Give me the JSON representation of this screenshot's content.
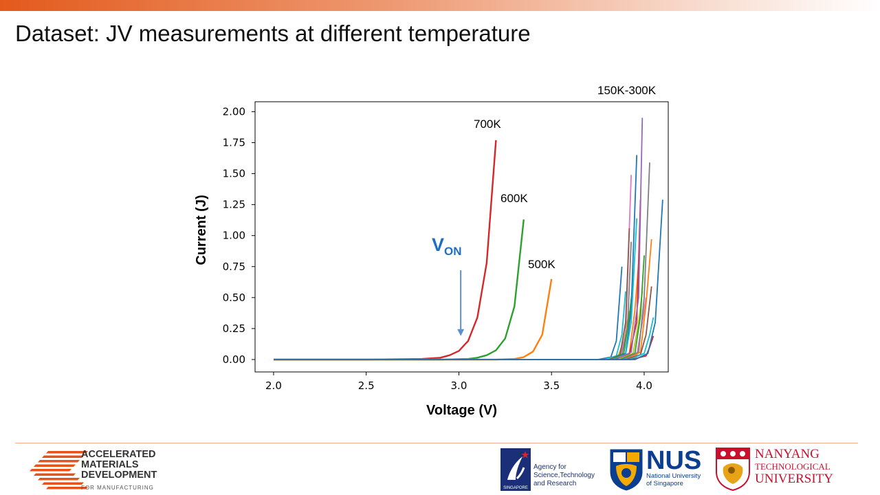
{
  "slide": {
    "title": "Dataset: JV measurements at different temperature"
  },
  "chart_data": {
    "type": "line",
    "title": "",
    "xlabel": "Voltage (V)",
    "ylabel": "Current (J)",
    "xlim": [
      1.9,
      4.13
    ],
    "ylim": [
      -0.1,
      2.08
    ],
    "xticks": [
      "2.0",
      "2.5",
      "3.0",
      "3.5",
      "4.0"
    ],
    "yticks": [
      "0.00",
      "0.25",
      "0.50",
      "0.75",
      "1.00",
      "1.25",
      "1.50",
      "1.75",
      "2.00"
    ],
    "grid": false,
    "series": [
      {
        "name": "700K",
        "color": "#d62728",
        "x": [
          2.0,
          2.5,
          2.8,
          2.9,
          2.95,
          3.0,
          3.05,
          3.1,
          3.15,
          3.2
        ],
        "y": [
          0.0,
          0.0,
          0.005,
          0.015,
          0.035,
          0.07,
          0.15,
          0.34,
          0.78,
          1.77
        ]
      },
      {
        "name": "600K",
        "color": "#2ca02c",
        "x": [
          2.0,
          2.9,
          3.05,
          3.1,
          3.15,
          3.2,
          3.25,
          3.3,
          3.35
        ],
        "y": [
          0.0,
          0.0,
          0.005,
          0.015,
          0.035,
          0.075,
          0.17,
          0.43,
          1.13
        ]
      },
      {
        "name": "500K",
        "color": "#ff7f0e",
        "x": [
          2.0,
          3.2,
          3.3,
          3.35,
          3.4,
          3.45,
          3.5
        ],
        "y": [
          0.0,
          0.0,
          0.005,
          0.02,
          0.065,
          0.2,
          0.65
        ]
      },
      {
        "color": "#1f77b4",
        "x": [
          2.0,
          3.75,
          3.82,
          3.85,
          3.88
        ],
        "y": [
          0.0,
          0.0,
          0.02,
          0.15,
          0.75
        ]
      },
      {
        "color": "#17becf",
        "x": [
          2.0,
          3.78,
          3.85,
          3.88,
          3.9
        ],
        "y": [
          0.0,
          0.0,
          0.03,
          0.2,
          0.55
        ]
      },
      {
        "color": "#bcbd22",
        "x": [
          2.0,
          3.8,
          3.86,
          3.89,
          3.92
        ],
        "y": [
          0.0,
          0.0,
          0.03,
          0.15,
          0.39
        ]
      },
      {
        "color": "#e377c2",
        "x": [
          2.0,
          3.8,
          3.87,
          3.9,
          3.93
        ],
        "y": [
          0.0,
          0.0,
          0.03,
          0.2,
          1.49
        ]
      },
      {
        "color": "#8c564b",
        "x": [
          2.0,
          3.81,
          3.87,
          3.9,
          3.92
        ],
        "y": [
          0.0,
          0.0,
          0.04,
          0.3,
          1.06
        ]
      },
      {
        "color": "#7f7f7f",
        "x": [
          2.0,
          3.82,
          3.88,
          3.91,
          3.93
        ],
        "y": [
          0.0,
          0.0,
          0.04,
          0.25,
          0.95
        ]
      },
      {
        "color": "#2ca02c",
        "x": [
          2.0,
          3.82,
          3.89,
          3.92,
          3.94
        ],
        "y": [
          0.0,
          0.0,
          0.05,
          0.35,
          0.62
        ]
      },
      {
        "color": "#1f77b4",
        "x": [
          2.0,
          3.83,
          3.9,
          3.93,
          3.96
        ],
        "y": [
          0.0,
          0.0,
          0.05,
          0.4,
          1.65
        ]
      },
      {
        "color": "#17becf",
        "x": [
          2.0,
          3.83,
          3.9,
          3.93,
          3.96
        ],
        "y": [
          0.0,
          0.0,
          0.04,
          0.3,
          1.14
        ]
      },
      {
        "color": "#ff7f0e",
        "x": [
          2.0,
          3.84,
          3.92,
          3.95,
          3.97
        ],
        "y": [
          0.0,
          0.0,
          0.05,
          0.4,
          0.78
        ]
      },
      {
        "color": "#d62728",
        "x": [
          2.0,
          3.84,
          3.92,
          3.96,
          3.98
        ],
        "y": [
          0.0,
          0.0,
          0.04,
          0.3,
          1.29
        ]
      },
      {
        "color": "#9467bd",
        "x": [
          2.0,
          3.85,
          3.93,
          3.97,
          3.99
        ],
        "y": [
          0.0,
          0.0,
          0.06,
          0.5,
          1.95
        ]
      },
      {
        "color": "#bcbd22",
        "x": [
          2.0,
          3.86,
          3.94,
          3.97,
          3.99
        ],
        "y": [
          0.0,
          0.0,
          0.05,
          0.3,
          0.55
        ]
      },
      {
        "color": "#2ca02c",
        "x": [
          2.0,
          3.87,
          3.95,
          3.98,
          4.0
        ],
        "y": [
          0.0,
          0.0,
          0.05,
          0.35,
          0.84
        ]
      },
      {
        "color": "#e377c2",
        "x": [
          2.0,
          3.88,
          3.96,
          3.99,
          4.01
        ],
        "y": [
          0.0,
          0.0,
          0.04,
          0.3,
          0.5
        ]
      },
      {
        "color": "#7f7f7f",
        "x": [
          2.0,
          3.88,
          3.97,
          4.0,
          4.03
        ],
        "y": [
          0.0,
          0.0,
          0.06,
          0.5,
          1.59
        ]
      },
      {
        "color": "#ff7f0e",
        "x": [
          2.0,
          3.9,
          3.98,
          4.01,
          4.04
        ],
        "y": [
          0.0,
          0.0,
          0.06,
          0.45,
          0.97
        ]
      },
      {
        "color": "#8c564b",
        "x": [
          2.0,
          3.9,
          3.98,
          4.01,
          4.04
        ],
        "y": [
          0.0,
          0.0,
          0.04,
          0.2,
          0.59
        ]
      },
      {
        "color": "#17becf",
        "x": [
          2.0,
          3.92,
          4.0,
          4.03,
          4.05
        ],
        "y": [
          0.0,
          0.0,
          0.05,
          0.2,
          0.34
        ]
      },
      {
        "color": "#d62728",
        "x": [
          2.0,
          3.93,
          4.01,
          4.03,
          4.05
        ],
        "y": [
          0.0,
          0.0,
          0.03,
          0.1,
          0.19
        ]
      },
      {
        "color": "#1f77b4",
        "x": [
          2.0,
          3.95,
          4.02,
          4.06,
          4.1
        ],
        "y": [
          0.0,
          0.0,
          0.05,
          0.3,
          1.29
        ]
      }
    ],
    "annotations": {
      "label_150_300": "150K-300K",
      "label_700": "700K",
      "label_600": "600K",
      "label_500": "500K",
      "von_main": "V",
      "von_sub": "ON",
      "von_arrow_x": 3.01,
      "von_arrow_y_top": 0.72,
      "von_arrow_y_bottom": 0.19
    },
    "colors": {
      "von": "#1f6fc1",
      "arrow": "#5b8fd0"
    }
  },
  "footer": {
    "amd": {
      "line1": "ACCELERATED",
      "line2": "MATERIALS",
      "line3": "DEVELOPMENT",
      "small": "FOR MANUFACTURING"
    },
    "astar": {
      "line1": "Agency for",
      "line2": "Science,Technology",
      "line3": "and Research",
      "badge": "SINGAPORE"
    },
    "nus": {
      "name": "NUS",
      "line1": "National University",
      "line2": "of Singapore"
    },
    "ntu": {
      "line1": "NANYANG",
      "line2": "TECHNOLOGICAL",
      "line3": "UNIVERSITY"
    },
    "colors": {
      "amd": "#e5531a",
      "astar": "#1a2f78",
      "nus": "#0b3d91",
      "ntu": "#c8102e"
    }
  }
}
